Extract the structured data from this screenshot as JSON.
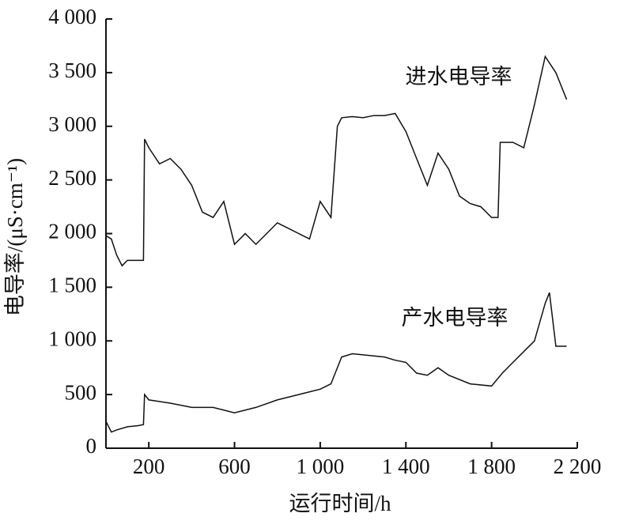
{
  "chart_data": {
    "type": "line",
    "xlabel": "运行时间/h",
    "ylabel": "电导率/(μS·cm⁻¹)",
    "xlim": [
      0,
      2200
    ],
    "ylim": [
      0,
      4000
    ],
    "xticks": [
      200,
      600,
      {
        "value": 1000,
        "label": "1 000"
      },
      {
        "value": 1400,
        "label": "1 400"
      },
      {
        "value": 1800,
        "label": "1 800"
      },
      {
        "value": 2200,
        "label": "2 200"
      }
    ],
    "yticks": [
      0,
      500,
      {
        "value": 1000,
        "label": "1 000"
      },
      {
        "value": 1500,
        "label": "1 500"
      },
      {
        "value": 2000,
        "label": "2 000"
      },
      {
        "value": 2500,
        "label": "2 500"
      },
      {
        "value": 3000,
        "label": "3 000"
      },
      {
        "value": 3500,
        "label": "3 500"
      },
      {
        "value": 4000,
        "label": "4 000"
      }
    ],
    "series": [
      {
        "name": "进水电导率",
        "color": "#111111",
        "x": [
          0,
          25,
          50,
          75,
          100,
          150,
          175,
          180,
          200,
          250,
          300,
          350,
          400,
          450,
          500,
          550,
          600,
          650,
          700,
          750,
          800,
          850,
          900,
          950,
          1000,
          1050,
          1080,
          1100,
          1150,
          1200,
          1250,
          1300,
          1350,
          1400,
          1450,
          1500,
          1550,
          1600,
          1650,
          1700,
          1750,
          1800,
          1830,
          1840,
          1900,
          1950,
          2000,
          2050,
          2100,
          2150
        ],
        "values": [
          1980,
          1950,
          1800,
          1700,
          1750,
          1750,
          1750,
          2880,
          2800,
          2650,
          2700,
          2600,
          2450,
          2200,
          2150,
          2300,
          1900,
          2000,
          1900,
          2000,
          2100,
          2050,
          2000,
          1950,
          2300,
          2150,
          3000,
          3080,
          3090,
          3080,
          3100,
          3100,
          3120,
          2950,
          2700,
          2450,
          2750,
          2600,
          2350,
          2280,
          2250,
          2150,
          2150,
          2850,
          2850,
          2800,
          3200,
          3650,
          3500,
          3250
        ]
      },
      {
        "name": "产水电导率",
        "color": "#111111",
        "x": [
          0,
          25,
          50,
          100,
          150,
          175,
          180,
          200,
          300,
          400,
          500,
          600,
          700,
          800,
          900,
          1000,
          1050,
          1100,
          1150,
          1200,
          1300,
          1350,
          1400,
          1450,
          1500,
          1550,
          1600,
          1700,
          1800,
          1850,
          1900,
          2000,
          2050,
          2070,
          2100,
          2150
        ],
        "values": [
          250,
          150,
          170,
          200,
          210,
          220,
          500,
          450,
          420,
          380,
          380,
          330,
          380,
          450,
          500,
          550,
          600,
          850,
          880,
          870,
          850,
          820,
          800,
          700,
          680,
          750,
          680,
          600,
          580,
          700,
          800,
          1000,
          1350,
          1450,
          950,
          950
        ]
      }
    ]
  }
}
